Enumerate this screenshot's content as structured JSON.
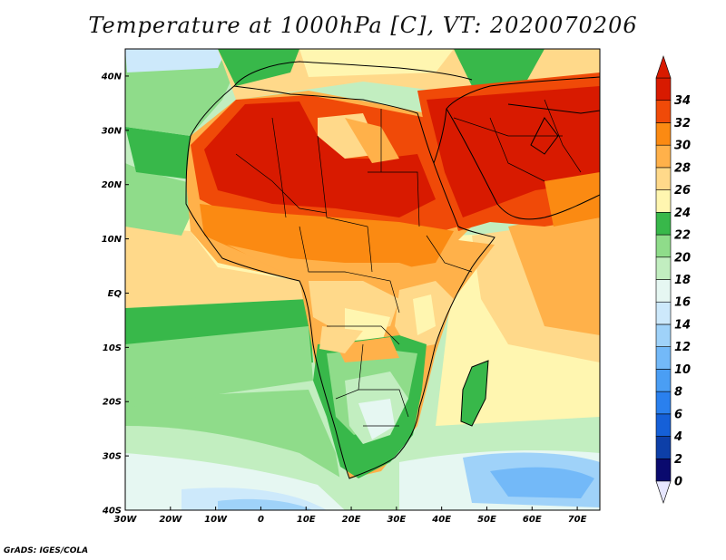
{
  "title": "Temperature at 1000hPa [C], VT: 2020070206",
  "credit": "GrADS: IGES/COLA",
  "map": {
    "lat_labels": [
      "40N",
      "30N",
      "20N",
      "10N",
      "EQ",
      "10S",
      "20S",
      "30S",
      "40S"
    ],
    "lon_labels": [
      "30W",
      "20W",
      "10W",
      "0",
      "10E",
      "20E",
      "30E",
      "40E",
      "50E",
      "60E",
      "70E"
    ],
    "lat_range": [
      -40,
      45
    ],
    "lon_range": [
      -30,
      75
    ]
  },
  "colorbar": {
    "labels": [
      "0",
      "2",
      "4",
      "6",
      "8",
      "10",
      "12",
      "14",
      "16",
      "18",
      "20",
      "22",
      "24",
      "26",
      "28",
      "30",
      "32",
      "34"
    ],
    "colors": [
      "#0a0a6e",
      "#0d3fa8",
      "#1560d8",
      "#2a80ee",
      "#4a9ef4",
      "#73b9f8",
      "#9fd2f9",
      "#cde9fb",
      "#e6f7f2",
      "#c2eec0",
      "#8fdc8a",
      "#38b84a",
      "#fff6b0",
      "#ffd98a",
      "#ffb14a",
      "#fb8a12",
      "#f04a08",
      "#d81a00"
    ],
    "below_color": "#e6e6ff",
    "above_color": "#d81a00"
  }
}
